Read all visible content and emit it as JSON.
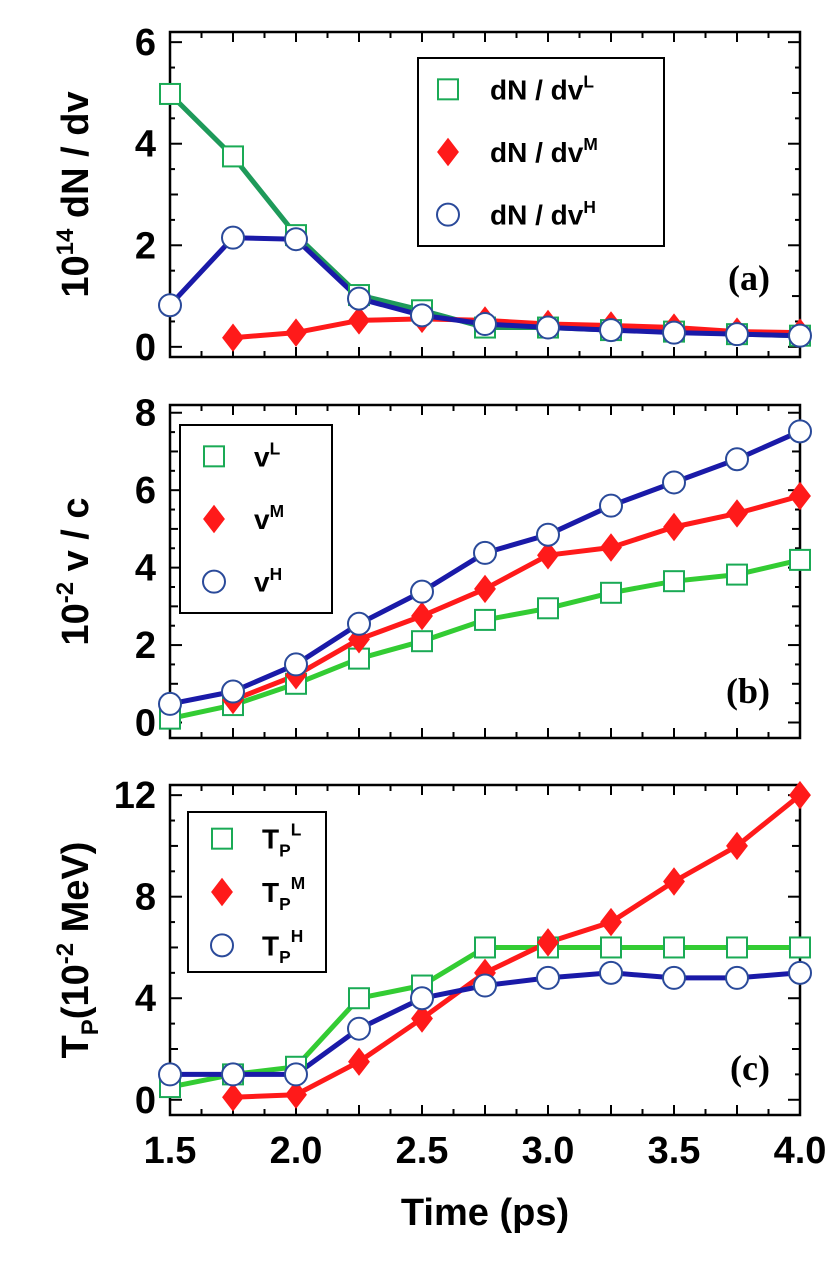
{
  "colors": {
    "low": "#1aaa55",
    "low_line_a": "#1e9a5a",
    "low_line_b": "#33cc33",
    "mid": "#ff1a1a",
    "high": "#1a1aa8",
    "high_marker_edge": "#2a4a9a"
  },
  "chart_data": [
    {
      "type": "line",
      "panel_label": "(a)",
      "ylabel_prefix": "10",
      "ylabel_sup": "14",
      "ylabel_rest": " dN / dv",
      "ylim": [
        -0.2,
        6.2
      ],
      "yticks": [
        "0",
        "2",
        "4",
        "6"
      ],
      "ytick_values": [
        0,
        2,
        4,
        6
      ],
      "xlim": [
        1.5,
        4.0
      ],
      "legend": [
        "dN / dv^L",
        "dN / dv^M",
        "dN / dv^H"
      ],
      "legend_base": [
        "dN / dv",
        "dN / dv",
        "dN / dv"
      ],
      "legend_sup": [
        "L",
        "M",
        "H"
      ],
      "legend_sub": [
        "",
        "",
        ""
      ],
      "legend_position": "top-right",
      "series": [
        {
          "name": "L",
          "marker": "square",
          "x": [
            1.5,
            1.75,
            2.0,
            2.25,
            2.5,
            2.75,
            3.0,
            3.25,
            3.5,
            3.75,
            4.0
          ],
          "values": [
            4.98,
            3.75,
            2.2,
            1.02,
            0.72,
            0.38,
            0.38,
            0.33,
            0.3,
            0.25,
            0.22
          ]
        },
        {
          "name": "M",
          "marker": "diamond",
          "x": [
            1.75,
            2.0,
            2.25,
            2.5,
            2.75,
            3.0,
            3.25,
            3.5,
            3.75,
            4.0
          ],
          "values": [
            0.18,
            0.28,
            0.52,
            0.55,
            0.52,
            0.45,
            0.42,
            0.38,
            0.3,
            0.28
          ]
        },
        {
          "name": "H",
          "marker": "circle",
          "x": [
            1.5,
            1.75,
            2.0,
            2.25,
            2.5,
            2.75,
            3.0,
            3.25,
            3.5,
            3.75,
            4.0
          ],
          "values": [
            0.82,
            2.15,
            2.12,
            0.95,
            0.62,
            0.45,
            0.38,
            0.33,
            0.28,
            0.25,
            0.22
          ]
        }
      ]
    },
    {
      "type": "line",
      "panel_label": "(b)",
      "ylabel_prefix": "10",
      "ylabel_sup": "-2",
      "ylabel_rest": " v / c",
      "ylim": [
        -0.4,
        8.2
      ],
      "yticks": [
        "0",
        "2",
        "4",
        "6",
        "8"
      ],
      "ytick_values": [
        0,
        2,
        4,
        6,
        8
      ],
      "xlim": [
        1.5,
        4.0
      ],
      "legend": [
        "v^L",
        "v^M",
        "v^H"
      ],
      "legend_base": [
        "v",
        "v",
        "v"
      ],
      "legend_sup": [
        "L",
        "M",
        "H"
      ],
      "legend_sub": [
        "",
        "",
        ""
      ],
      "legend_position": "top-left",
      "series": [
        {
          "name": "L",
          "marker": "square",
          "x": [
            1.5,
            1.75,
            2.0,
            2.25,
            2.5,
            2.75,
            3.0,
            3.25,
            3.5,
            3.75,
            4.0
          ],
          "values": [
            0.1,
            0.45,
            1.0,
            1.65,
            2.1,
            2.65,
            2.95,
            3.35,
            3.65,
            3.82,
            4.2
          ]
        },
        {
          "name": "M",
          "marker": "diamond",
          "x": [
            1.75,
            2.0,
            2.25,
            2.5,
            2.75,
            3.0,
            3.25,
            3.5,
            3.75,
            4.0
          ],
          "values": [
            0.58,
            1.22,
            2.15,
            2.75,
            3.45,
            4.32,
            4.52,
            5.05,
            5.4,
            5.85
          ]
        },
        {
          "name": "H",
          "marker": "circle",
          "x": [
            1.5,
            1.75,
            2.0,
            2.25,
            2.5,
            2.75,
            3.0,
            3.25,
            3.5,
            3.75,
            4.0
          ],
          "values": [
            0.48,
            0.8,
            1.5,
            2.55,
            3.38,
            4.38,
            4.85,
            5.6,
            6.2,
            6.8,
            7.52
          ]
        }
      ]
    },
    {
      "type": "line",
      "panel_label": "(c)",
      "ylabel_prefix": "T",
      "ylabel_sub": "P",
      "ylabel_rest": "(10",
      "ylabel_sup": "-2",
      "ylabel_end": " MeV)",
      "xlabel": "Time (ps)",
      "ylim": [
        -0.6,
        12.4
      ],
      "yticks": [
        "0",
        "4",
        "8",
        "12"
      ],
      "ytick_values": [
        0,
        4,
        8,
        12
      ],
      "xlim": [
        1.5,
        4.0
      ],
      "xticks": [
        "1.5",
        "2.0",
        "2.5",
        "3.0",
        "3.5",
        "4.0"
      ],
      "xtick_values": [
        1.5,
        2.0,
        2.5,
        3.0,
        3.5,
        4.0
      ],
      "legend": [
        "T_P^L",
        "T_P^M",
        "T_P^H"
      ],
      "legend_base": [
        "T",
        "T",
        "T"
      ],
      "legend_sup": [
        "L",
        "M",
        "H"
      ],
      "legend_sub": [
        "P",
        "P",
        "P"
      ],
      "legend_position": "top-left",
      "series": [
        {
          "name": "L",
          "marker": "square",
          "x": [
            1.5,
            1.75,
            2.0,
            2.25,
            2.5,
            2.75,
            3.0,
            3.25,
            3.5,
            3.75,
            4.0
          ],
          "values": [
            0.5,
            1.0,
            1.3,
            4.0,
            4.5,
            6.0,
            6.0,
            6.0,
            6.0,
            6.0,
            6.0
          ]
        },
        {
          "name": "M",
          "marker": "diamond",
          "x": [
            1.75,
            2.0,
            2.25,
            2.5,
            2.75,
            3.0,
            3.25,
            3.5,
            3.75,
            4.0
          ],
          "values": [
            0.1,
            0.2,
            1.5,
            3.2,
            5.0,
            6.2,
            7.0,
            8.6,
            10.0,
            12.0
          ]
        },
        {
          "name": "H",
          "marker": "circle",
          "x": [
            1.5,
            1.75,
            2.0,
            2.25,
            2.5,
            2.75,
            3.0,
            3.25,
            3.5,
            3.75,
            4.0
          ],
          "values": [
            1.0,
            1.0,
            1.0,
            2.8,
            4.0,
            4.5,
            4.8,
            5.0,
            4.8,
            4.8,
            5.0
          ]
        }
      ]
    }
  ]
}
